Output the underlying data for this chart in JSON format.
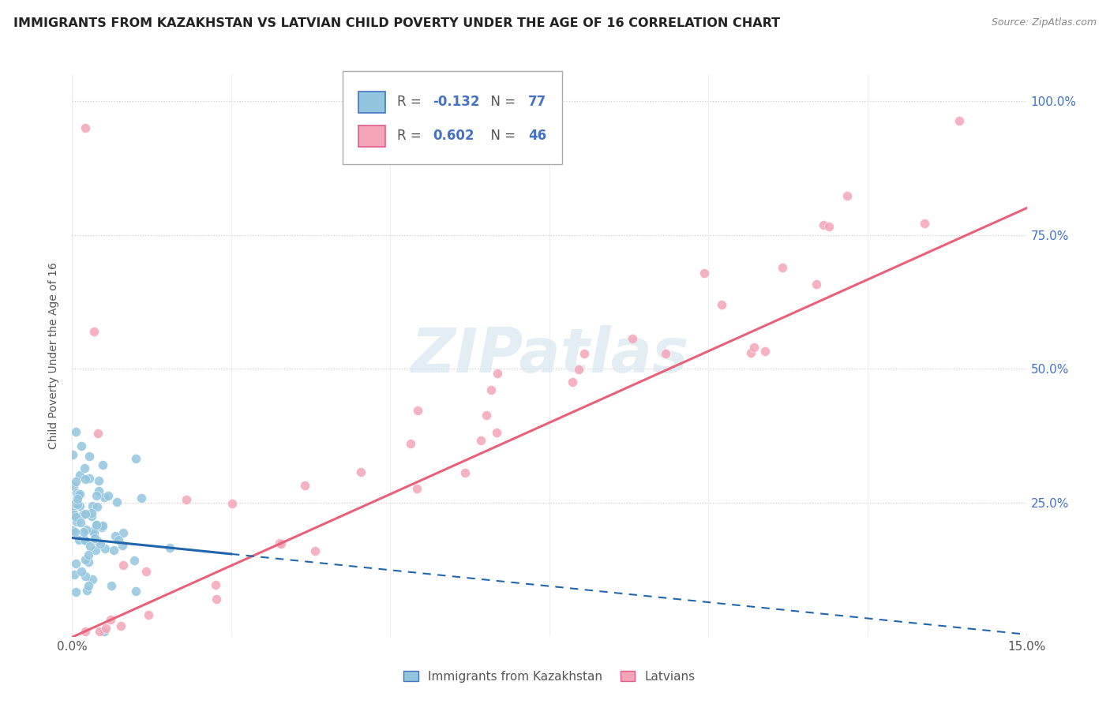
{
  "title": "IMMIGRANTS FROM KAZAKHSTAN VS LATVIAN CHILD POVERTY UNDER THE AGE OF 16 CORRELATION CHART",
  "source": "Source: ZipAtlas.com",
  "ylabel": "Child Poverty Under the Age of 16",
  "xlabel_blue": "Immigrants from Kazakhstan",
  "xlabel_pink": "Latvians",
  "legend_blue_R": "-0.132",
  "legend_blue_N": "77",
  "legend_pink_R": "0.602",
  "legend_pink_N": "46",
  "xlim": [
    0.0,
    0.15
  ],
  "ylim": [
    0.0,
    1.05
  ],
  "blue_color": "#92c5de",
  "pink_color": "#f4a5b8",
  "blue_line_color": "#2166ac",
  "pink_line_color": "#e8607a",
  "watermark": "ZIPatlas",
  "background_color": "#ffffff",
  "grid_color": "#e0e0e0",
  "title_fontsize": 11.5,
  "axis_fontsize": 11,
  "legend_fontsize": 12
}
